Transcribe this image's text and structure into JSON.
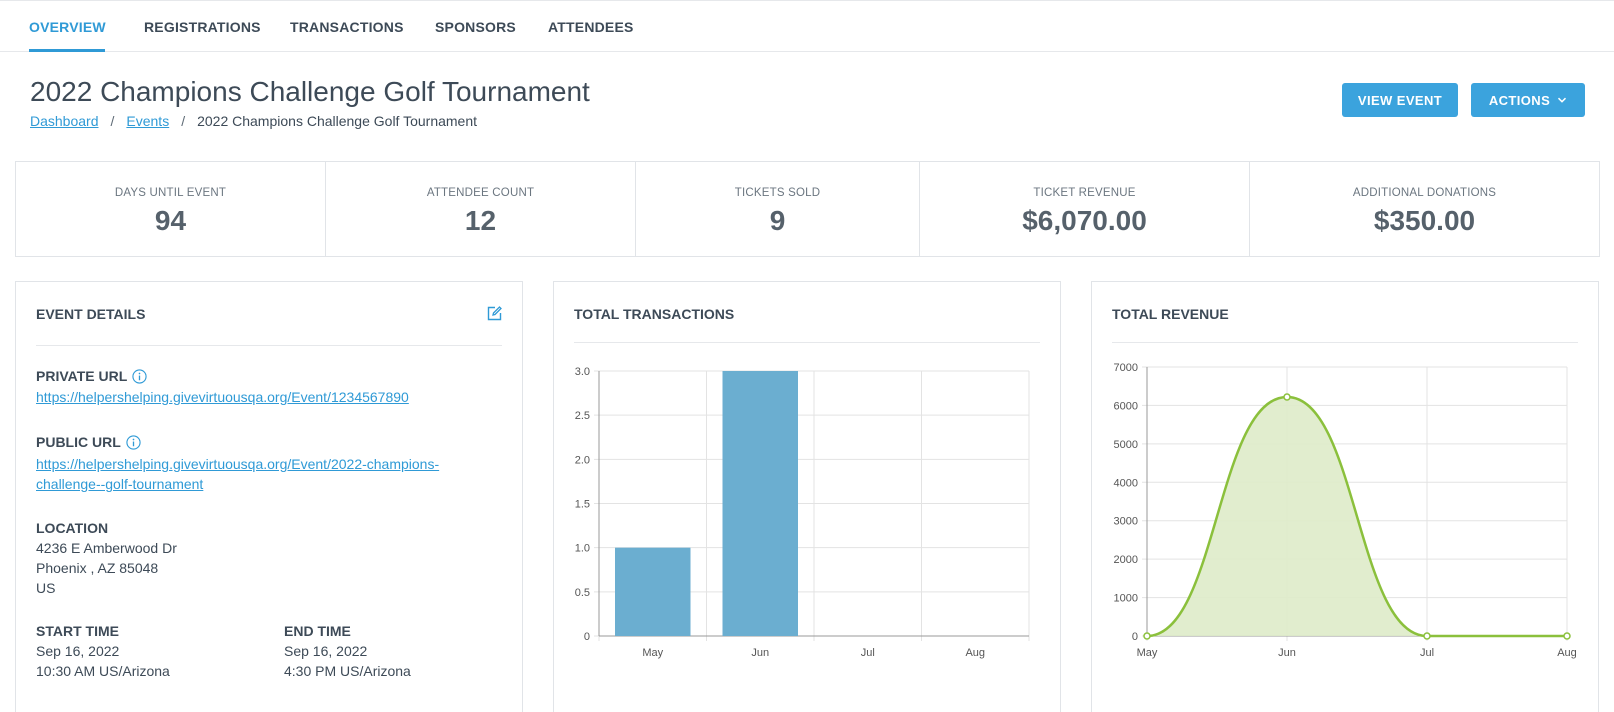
{
  "nav": {
    "tabs": [
      {
        "label": "OVERVIEW"
      },
      {
        "label": "REGISTRATIONS"
      },
      {
        "label": "TRANSACTIONS"
      },
      {
        "label": "SPONSORS"
      },
      {
        "label": "ATTENDEES"
      }
    ],
    "active_tab": "OVERVIEW"
  },
  "header": {
    "title": "2022 Champions Challenge Golf Tournament",
    "breadcrumb": {
      "dashboard": "Dashboard",
      "events": "Events",
      "separator": "/",
      "current": "2022 Champions Challenge Golf Tournament"
    },
    "view_event_label": "VIEW EVENT",
    "actions_label": "ACTIONS"
  },
  "stats": [
    {
      "label": "DAYS UNTIL EVENT",
      "value": "94"
    },
    {
      "label": "ATTENDEE COUNT",
      "value": "12"
    },
    {
      "label": "TICKETS SOLD",
      "value": "9"
    },
    {
      "label": "TICKET REVENUE",
      "value": "$6,070.00"
    },
    {
      "label": "ADDITIONAL DONATIONS",
      "value": "$350.00"
    }
  ],
  "event_details": {
    "title": "EVENT DETAILS",
    "private_url_label": "PRIVATE URL",
    "private_url": "https://helpershelping.givevirtuousqa.org/Event/1234567890",
    "public_url_label": "PUBLIC URL",
    "public_url_line1": "https://helpershelping.givevirtuousqa.org/Event/2022-champions-",
    "public_url_line2": "challenge--golf-tournament",
    "location_label": "LOCATION",
    "location_line1": "4236 E Amberwood Dr",
    "location_line2": "Phoenix , AZ 85048",
    "location_line3": "US",
    "start_time_label": "START TIME",
    "start_date": "Sep 16, 2022",
    "start_time": "10:30 AM US/Arizona",
    "end_time_label": "END TIME",
    "end_date": "Sep 16, 2022",
    "end_time": "4:30 PM US/Arizona"
  },
  "transactions_card": {
    "title": "TOTAL TRANSACTIONS"
  },
  "revenue_card": {
    "title": "TOTAL REVENUE"
  },
  "colors": {
    "accent": "#2f9ad6",
    "button": "#3ba3dd",
    "bar": "#6baed0",
    "line": "#8bc03c",
    "area": "#deebc9"
  },
  "icons": {
    "edit": "edit-icon",
    "info": "info-icon",
    "chevron": "chevron-down-icon"
  },
  "chart_data": [
    {
      "type": "bar",
      "title": "TOTAL TRANSACTIONS",
      "categories": [
        "May",
        "Jun",
        "Jul",
        "Aug"
      ],
      "values": [
        1,
        3,
        0,
        0
      ],
      "ylim": [
        0,
        3
      ],
      "yticks": [
        "0",
        "0.5",
        "1.0",
        "1.5",
        "2.0",
        "2.5",
        "3.0"
      ],
      "grid": true
    },
    {
      "type": "area",
      "title": "TOTAL REVENUE",
      "categories": [
        "May",
        "Jun",
        "Jul",
        "Aug"
      ],
      "values": [
        0,
        6220,
        0,
        0
      ],
      "ylim": [
        0,
        7000
      ],
      "yticks": [
        "0",
        "1000",
        "2000",
        "3000",
        "4000",
        "5000",
        "6000",
        "7000"
      ],
      "grid": true,
      "smooth": true
    }
  ]
}
